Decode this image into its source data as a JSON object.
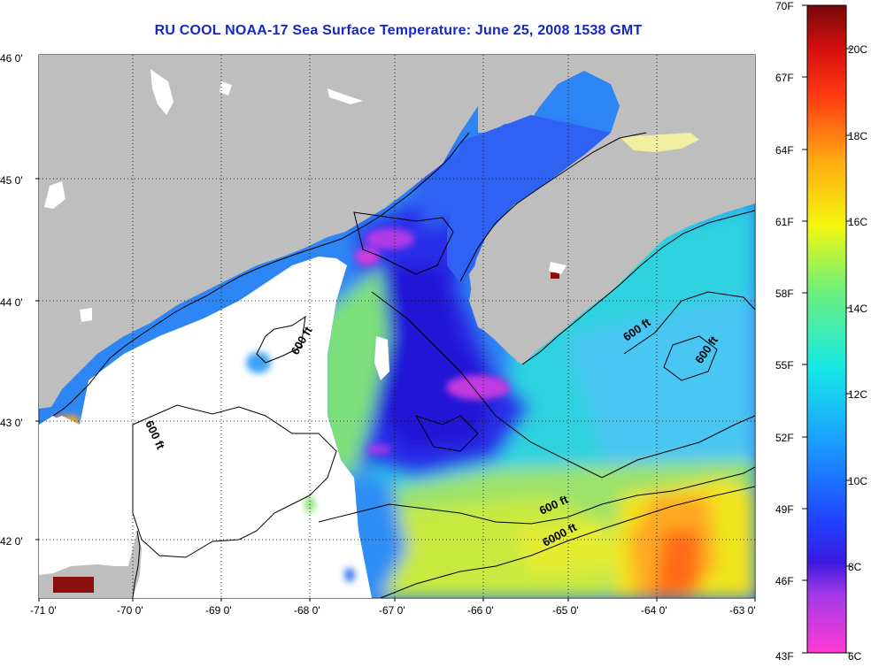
{
  "title": "RU COOL  NOAA-17  Sea Surface Temperature:  June 25, 2008 1538 GMT",
  "lat_labels": [
    "46 0'",
    "45 0'",
    "44 0'",
    "43 0'",
    "42 0'"
  ],
  "lon_labels": [
    "-71 0'",
    "-70 0'",
    "-69 0'",
    "-68 0'",
    "-67 0'",
    "-66 0'",
    "-65 0'",
    "-64 0'",
    "-63 0'"
  ],
  "contour_labels": [
    "600 ft",
    "600 ft",
    "600 ft",
    "600 ft",
    "600 ft",
    "6000 ft"
  ],
  "colorbar": {
    "fahrenheit": [
      "70F",
      "67F",
      "64F",
      "61F",
      "58F",
      "55F",
      "52F",
      "49F",
      "46F",
      "43F"
    ],
    "celsius": [
      "20C",
      "18C",
      "16C",
      "14C",
      "12C",
      "10C",
      "8C",
      "6C"
    ]
  },
  "colors": {
    "title": "#1428c8",
    "land": "#bebebe",
    "cloud": "#ffffff"
  }
}
